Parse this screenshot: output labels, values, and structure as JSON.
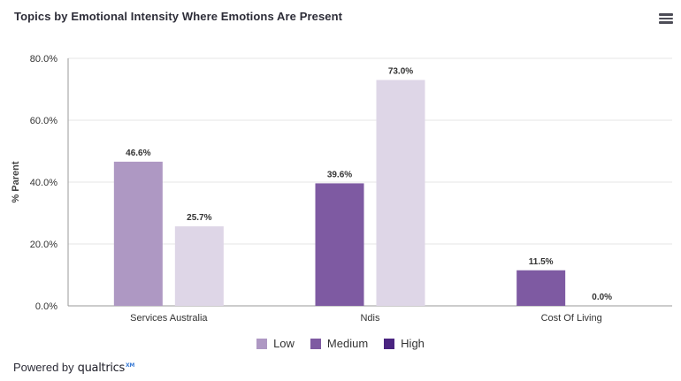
{
  "header": {
    "title": "Topics by Emotional Intensity Where Emotions Are Present",
    "menu_icon": "hamburger-menu-icon"
  },
  "footer": {
    "powered_label": "Powered by",
    "brand": "qualtrics",
    "brand_suffix": "XM"
  },
  "colors": {
    "low": "#ae98c3",
    "medium": "#7e5aa2",
    "high": "#4a2480",
    "light": "#ded6e7",
    "gridline": "#e6e6e6",
    "axis": "#999999"
  },
  "chart_data": {
    "type": "bar",
    "title": "Topics by Emotional Intensity Where Emotions Are Present",
    "xlabel": "",
    "ylabel": "% Parent",
    "ylim": [
      0,
      80
    ],
    "yticks": [
      "0.0%",
      "20.0%",
      "40.0%",
      "60.0%",
      "80.0%"
    ],
    "ytick_values": [
      0,
      20,
      40,
      60,
      80
    ],
    "grid": true,
    "legend_position": "bottom",
    "legend": [
      "Low",
      "Medium",
      "High"
    ],
    "categories": [
      "Services Australia",
      "Ndis",
      "Cost Of Living"
    ],
    "groups": [
      {
        "category": "Services Australia",
        "bars": [
          {
            "value": 46.6,
            "label": "46.6%",
            "color": "#ae98c3"
          },
          {
            "value": 25.7,
            "label": "25.7%",
            "color": "#ded6e7"
          }
        ]
      },
      {
        "category": "Ndis",
        "bars": [
          {
            "value": 39.6,
            "label": "39.6%",
            "color": "#7e5aa2"
          },
          {
            "value": 73.0,
            "label": "73.0%",
            "color": "#ded6e7"
          }
        ]
      },
      {
        "category": "Cost Of Living",
        "bars": [
          {
            "value": 11.5,
            "label": "11.5%",
            "color": "#7e5aa2"
          },
          {
            "value": 0.0,
            "label": "0.0%",
            "color": "#ded6e7"
          }
        ]
      }
    ]
  }
}
